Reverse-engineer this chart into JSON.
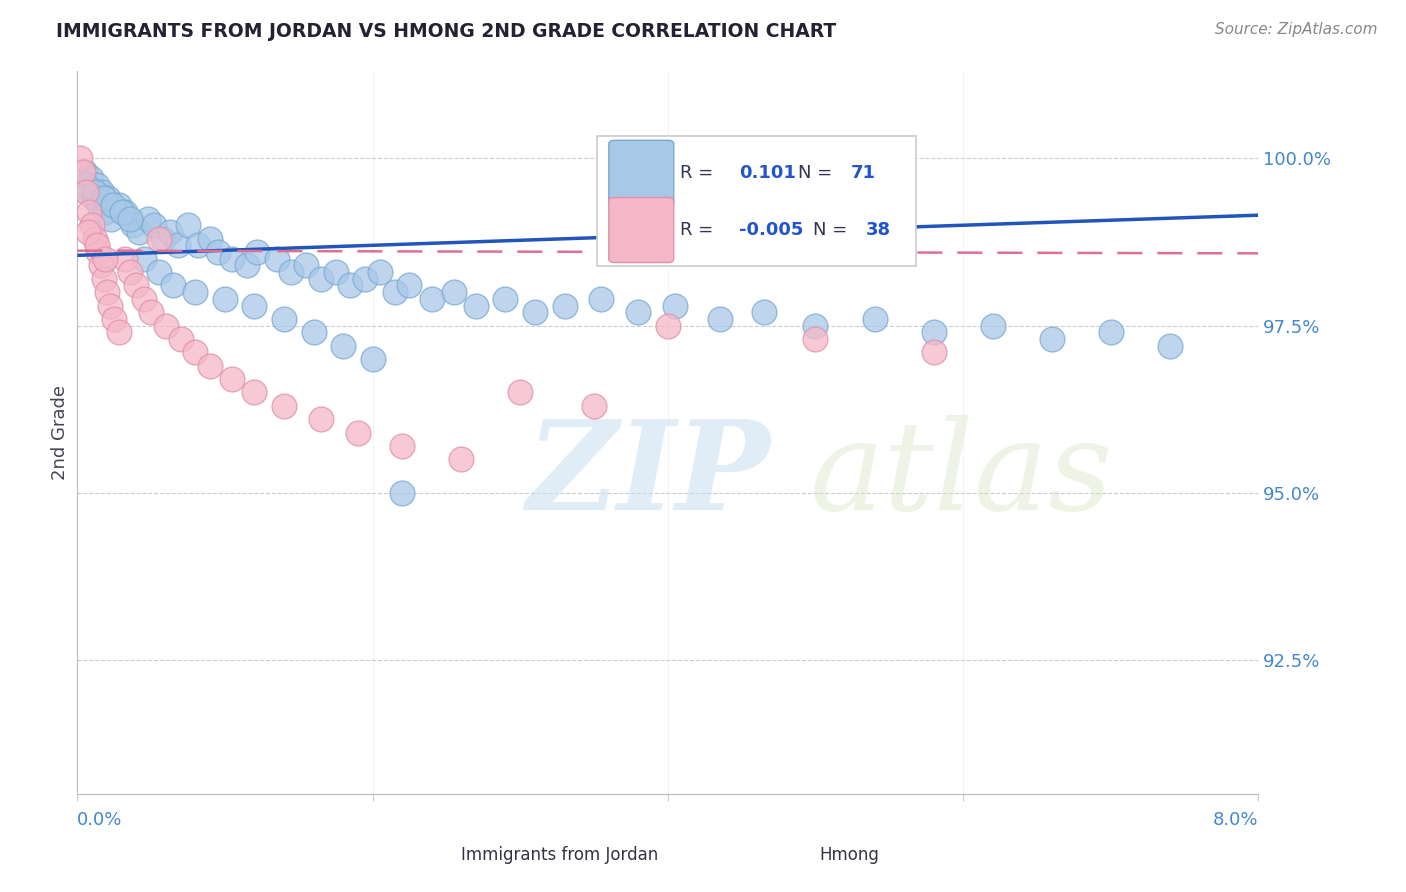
{
  "title": "IMMIGRANTS FROM JORDAN VS HMONG 2ND GRADE CORRELATION CHART",
  "source": "Source: ZipAtlas.com",
  "ylabel": "2nd Grade",
  "xlim": [
    0.0,
    8.0
  ],
  "ylim": [
    90.5,
    101.3
  ],
  "yticks": [
    92.5,
    95.0,
    97.5,
    100.0
  ],
  "ytick_labels": [
    "92.5%",
    "95.0%",
    "97.5%",
    "100.0%"
  ],
  "blue_color": "#a8c8e8",
  "blue_edge": "#7aaad0",
  "pink_color": "#f4b8c8",
  "pink_edge": "#e090a8",
  "trend_blue": "#2255bb",
  "trend_pink": "#dd7090",
  "legend_r_blue": "0.101",
  "legend_n_blue": "71",
  "legend_r_pink": "-0.005",
  "legend_n_pink": "38",
  "watermark_zip": "ZIP",
  "watermark_atlas": "atlas",
  "jordan_x": [
    0.05,
    0.07,
    0.09,
    0.11,
    0.13,
    0.15,
    0.17,
    0.19,
    0.21,
    0.23,
    0.28,
    0.32,
    0.38,
    0.42,
    0.48,
    0.52,
    0.58,
    0.63,
    0.68,
    0.75,
    0.82,
    0.9,
    0.95,
    1.05,
    1.15,
    1.22,
    1.35,
    1.45,
    1.55,
    1.65,
    1.75,
    1.85,
    1.95,
    2.05,
    2.15,
    2.25,
    2.4,
    2.55,
    2.7,
    2.9,
    3.1,
    3.3,
    3.55,
    3.8,
    4.05,
    4.35,
    4.65,
    5.0,
    5.4,
    5.8,
    6.2,
    6.6,
    7.0,
    7.4,
    0.06,
    0.12,
    0.18,
    0.24,
    0.3,
    0.36,
    0.45,
    0.55,
    0.65,
    0.8,
    1.0,
    1.2,
    1.4,
    1.6,
    1.8,
    2.0,
    2.2
  ],
  "jordan_y": [
    99.8,
    99.5,
    99.7,
    99.4,
    99.6,
    99.3,
    99.5,
    99.2,
    99.4,
    99.1,
    99.3,
    99.2,
    99.0,
    98.9,
    99.1,
    99.0,
    98.8,
    98.9,
    98.7,
    99.0,
    98.7,
    98.8,
    98.6,
    98.5,
    98.4,
    98.6,
    98.5,
    98.3,
    98.4,
    98.2,
    98.3,
    98.1,
    98.2,
    98.3,
    98.0,
    98.1,
    97.9,
    98.0,
    97.8,
    97.9,
    97.7,
    97.8,
    97.9,
    97.7,
    97.8,
    97.6,
    97.7,
    97.5,
    97.6,
    97.4,
    97.5,
    97.3,
    97.4,
    97.2,
    99.6,
    99.5,
    99.4,
    99.3,
    99.2,
    99.1,
    98.5,
    98.3,
    98.1,
    98.0,
    97.9,
    97.8,
    97.6,
    97.4,
    97.2,
    97.0,
    95.0
  ],
  "hmong_x": [
    0.02,
    0.04,
    0.06,
    0.08,
    0.1,
    0.12,
    0.14,
    0.16,
    0.18,
    0.2,
    0.22,
    0.25,
    0.28,
    0.32,
    0.36,
    0.4,
    0.45,
    0.5,
    0.55,
    0.6,
    0.7,
    0.8,
    0.9,
    1.05,
    1.2,
    1.4,
    1.65,
    1.9,
    2.2,
    2.6,
    3.0,
    3.5,
    4.0,
    5.0,
    5.8,
    0.07,
    0.13,
    0.19
  ],
  "hmong_y": [
    100.0,
    99.8,
    99.5,
    99.2,
    99.0,
    98.8,
    98.6,
    98.4,
    98.2,
    98.0,
    97.8,
    97.6,
    97.4,
    98.5,
    98.3,
    98.1,
    97.9,
    97.7,
    98.8,
    97.5,
    97.3,
    97.1,
    96.9,
    96.7,
    96.5,
    96.3,
    96.1,
    95.9,
    95.7,
    95.5,
    96.5,
    96.3,
    97.5,
    97.3,
    97.1,
    98.9,
    98.7,
    98.5
  ],
  "blue_trend_x0": 0.0,
  "blue_trend_y0": 98.55,
  "blue_trend_x1": 8.0,
  "blue_trend_y1": 99.15,
  "pink_trend_x0": 0.0,
  "pink_trend_y0": 98.62,
  "pink_trend_x1": 8.0,
  "pink_trend_y1": 98.58
}
